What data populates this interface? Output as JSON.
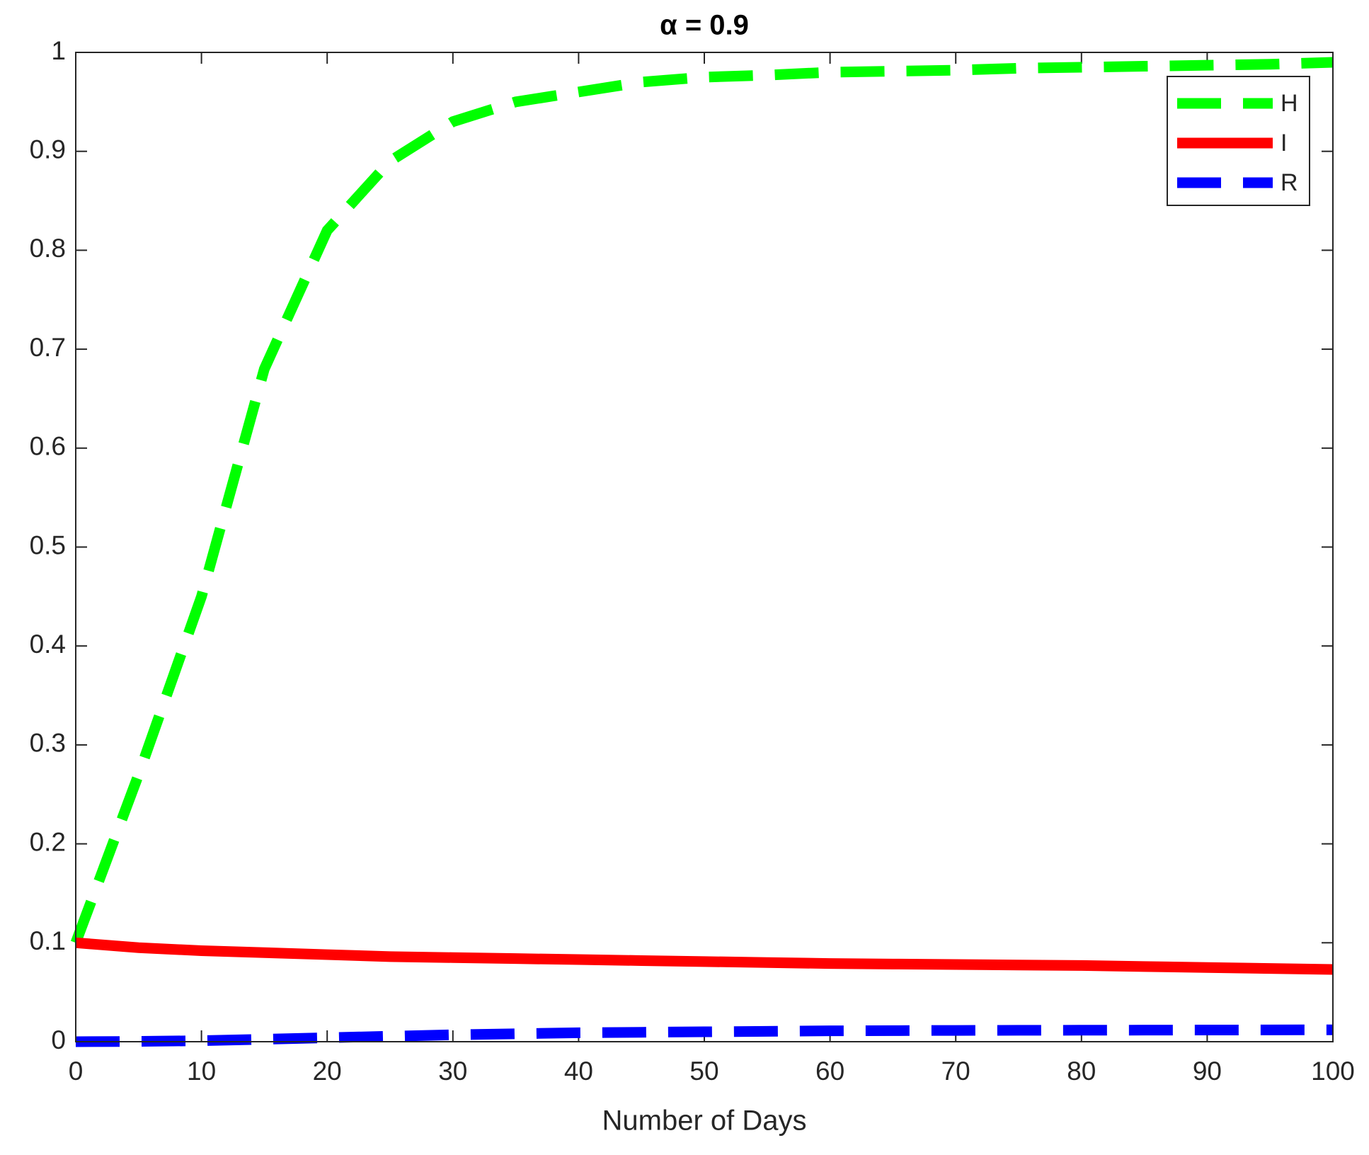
{
  "chart_data": {
    "type": "line",
    "title": "α = 0.9",
    "xlabel": "Number of Days",
    "x": [
      0,
      5,
      10,
      15,
      20,
      25,
      30,
      35,
      40,
      45,
      50,
      55,
      60,
      65,
      70,
      75,
      80,
      85,
      90,
      95,
      100
    ],
    "series": [
      {
        "name": "H",
        "color": "#00ff00",
        "linestyle": "dashed",
        "values": [
          0.1,
          0.27,
          0.45,
          0.68,
          0.82,
          0.89,
          0.93,
          0.95,
          0.96,
          0.97,
          0.975,
          0.977,
          0.98,
          0.981,
          0.982,
          0.984,
          0.985,
          0.986,
          0.987,
          0.988,
          0.99
        ]
      },
      {
        "name": "I",
        "color": "#ff0000",
        "linestyle": "solid",
        "values": [
          0.1,
          0.095,
          0.092,
          0.09,
          0.088,
          0.086,
          0.085,
          0.084,
          0.083,
          0.082,
          0.081,
          0.08,
          0.079,
          0.0785,
          0.078,
          0.0775,
          0.077,
          0.076,
          0.075,
          0.074,
          0.073
        ]
      },
      {
        "name": "R",
        "color": "#0000ff",
        "linestyle": "dashed",
        "values": [
          0,
          0.0003,
          0.001,
          0.0025,
          0.004,
          0.0055,
          0.007,
          0.008,
          0.009,
          0.0095,
          0.01,
          0.0105,
          0.011,
          0.0112,
          0.0114,
          0.0115,
          0.0116,
          0.0117,
          0.0118,
          0.0119,
          0.012
        ]
      }
    ],
    "xlim": [
      0,
      100
    ],
    "xticks": [
      0,
      10,
      20,
      30,
      40,
      50,
      60,
      70,
      80,
      90,
      100
    ],
    "ylim": [
      0,
      1
    ],
    "yticks": [
      0,
      0.1,
      0.2,
      0.3,
      0.4,
      0.5,
      0.6,
      0.7,
      0.8,
      0.9,
      1
    ],
    "legend": "north-east",
    "grid": false
  }
}
